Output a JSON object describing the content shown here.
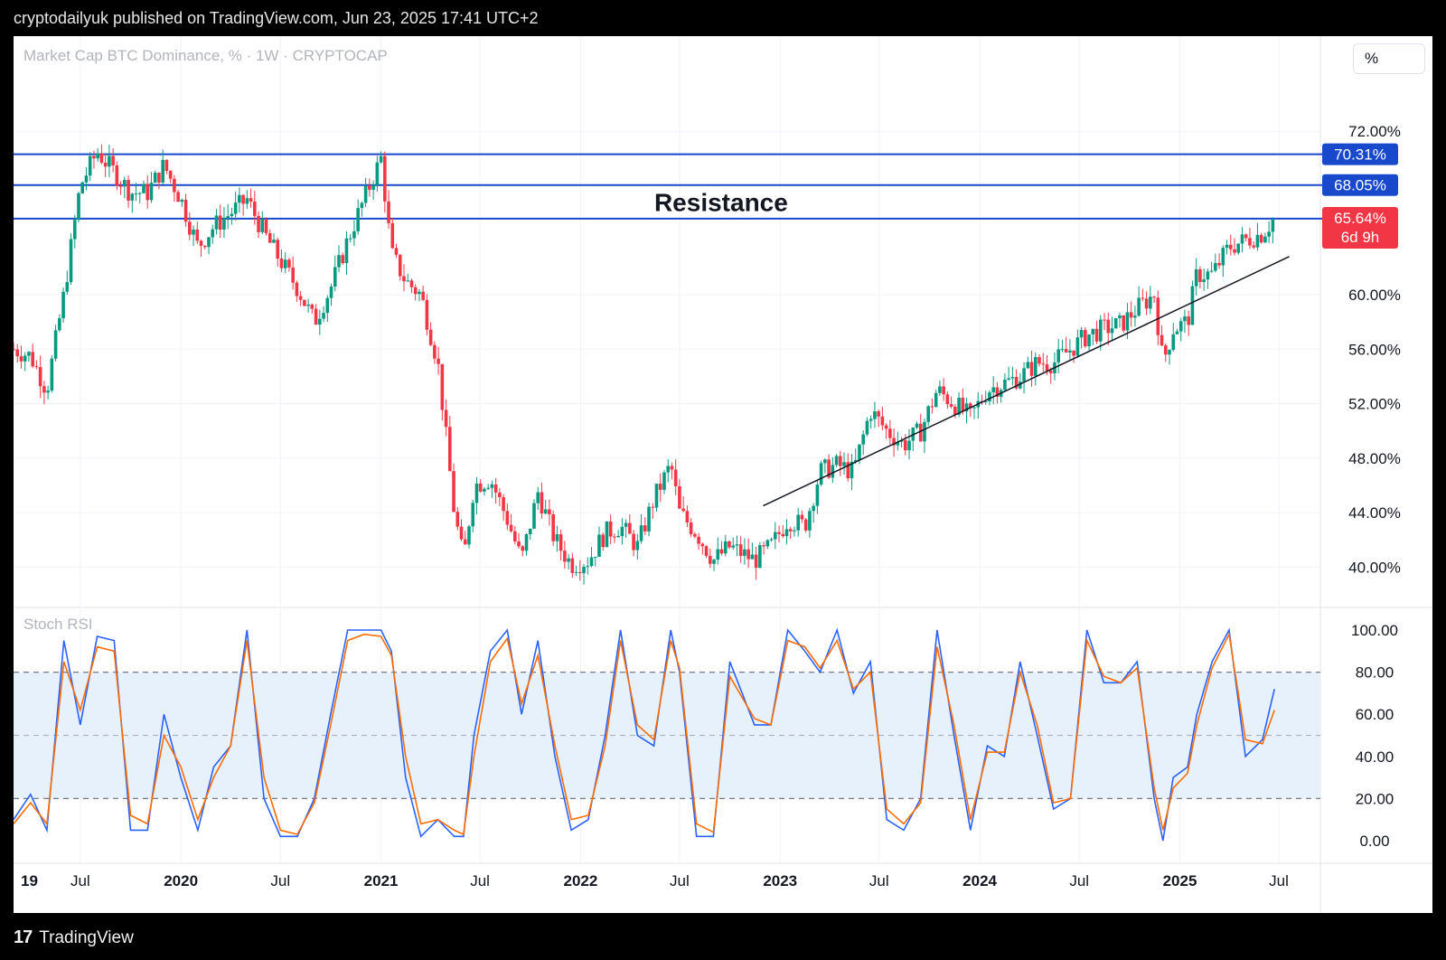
{
  "header": {
    "text": "cryptodailyuk published on TradingView.com, Jun 23, 2025 17:41 UTC+2"
  },
  "footer": {
    "brand": "TradingView",
    "logo_glyph": "17"
  },
  "unit_button": {
    "label": "%"
  },
  "colors": {
    "up": "#089981",
    "down": "#f23645",
    "line": "#1848cc",
    "rsi_k": "#2962ff",
    "rsi_d": "#ff6d00",
    "band": "#e6f1fb"
  },
  "chart_data": [
    {
      "type": "candlestick",
      "title": "Market Cap BTC Dominance, % · 1W · CRYPTOCAP",
      "y_unit": "%",
      "x_range": [
        "2019-03-01",
        "2025-09-15"
      ],
      "ylim": [
        37.5,
        75.0
      ],
      "yticks": [
        "72.00%",
        "60.00%",
        "56.00%",
        "52.00%",
        "48.00%",
        "44.00%",
        "40.00%"
      ],
      "xticks": [
        {
          "label": "19",
          "date": "2019-01-01"
        },
        {
          "label": "Jul",
          "date": "2019-07-01"
        },
        {
          "label": "2020",
          "date": "2020-01-01"
        },
        {
          "label": "Jul",
          "date": "2020-07-01"
        },
        {
          "label": "2021",
          "date": "2021-01-01"
        },
        {
          "label": "Jul",
          "date": "2021-07-01"
        },
        {
          "label": "2022",
          "date": "2022-01-01"
        },
        {
          "label": "Jul",
          "date": "2022-07-01"
        },
        {
          "label": "2023",
          "date": "2023-01-01"
        },
        {
          "label": "Jul",
          "date": "2023-07-01"
        },
        {
          "label": "2024",
          "date": "2024-01-01"
        },
        {
          "label": "Jul",
          "date": "2024-07-01"
        },
        {
          "label": "2025",
          "date": "2025-01-01"
        },
        {
          "label": "Jul",
          "date": "2025-07-01"
        }
      ],
      "horizontal_levels": [
        {
          "label": "70.31%",
          "value": 70.31
        },
        {
          "label": "68.05%",
          "value": 68.05
        },
        {
          "label": "65.58%",
          "value": 65.58
        }
      ],
      "last_price": {
        "label": "65.64%",
        "value": 65.64,
        "countdown": "6d 9h"
      },
      "annotation": {
        "text": "Resistance",
        "date": "2022-09-15",
        "value": 66.8
      },
      "trendline": {
        "start": {
          "date": "2022-12-01",
          "value": 44.5
        },
        "end": {
          "date": "2025-07-20",
          "value": 62.8
        }
      },
      "close_path": [
        [
          "2019-03-01",
          56.0
        ],
        [
          "2019-04-01",
          55.5
        ],
        [
          "2019-05-01",
          53.0
        ],
        [
          "2019-06-01",
          60.0
        ],
        [
          "2019-07-01",
          68.0
        ],
        [
          "2019-08-01",
          70.5
        ],
        [
          "2019-09-01",
          69.0
        ],
        [
          "2019-10-01",
          67.5
        ],
        [
          "2019-11-01",
          67.5
        ],
        [
          "2019-12-01",
          69.5
        ],
        [
          "2020-01-01",
          67.0
        ],
        [
          "2020-02-01",
          63.5
        ],
        [
          "2020-03-01",
          65.0
        ],
        [
          "2020-04-01",
          66.0
        ],
        [
          "2020-05-01",
          67.0
        ],
        [
          "2020-06-01",
          64.5
        ],
        [
          "2020-07-01",
          62.5
        ],
        [
          "2020-08-01",
          60.5
        ],
        [
          "2020-09-01",
          58.0
        ],
        [
          "2020-10-01",
          60.5
        ],
        [
          "2020-11-01",
          64.0
        ],
        [
          "2020-12-01",
          67.0
        ],
        [
          "2021-01-01",
          70.0
        ],
        [
          "2021-01-20",
          63.0
        ],
        [
          "2021-02-15",
          61.0
        ],
        [
          "2021-03-15",
          60.0
        ],
        [
          "2021-04-15",
          55.0
        ],
        [
          "2021-05-15",
          44.0
        ],
        [
          "2021-06-01",
          40.5
        ],
        [
          "2021-06-20",
          46.0
        ],
        [
          "2021-07-20",
          46.5
        ],
        [
          "2021-08-20",
          43.5
        ],
        [
          "2021-09-15",
          40.5
        ],
        [
          "2021-10-15",
          45.5
        ],
        [
          "2021-11-15",
          42.0
        ],
        [
          "2021-12-15",
          40.2
        ],
        [
          "2022-01-15",
          40.5
        ],
        [
          "2022-02-15",
          42.5
        ],
        [
          "2022-03-15",
          43.0
        ],
        [
          "2022-04-15",
          41.5
        ],
        [
          "2022-05-15",
          45.0
        ],
        [
          "2022-06-15",
          47.5
        ],
        [
          "2022-07-01",
          44.0
        ],
        [
          "2022-08-01",
          42.5
        ],
        [
          "2022-09-01",
          40.5
        ],
        [
          "2022-10-01",
          41.5
        ],
        [
          "2022-11-15",
          40.5
        ],
        [
          "2022-12-15",
          41.5
        ],
        [
          "2023-01-15",
          43.5
        ],
        [
          "2023-02-15",
          43.0
        ],
        [
          "2023-03-15",
          47.0
        ],
        [
          "2023-04-15",
          47.5
        ],
        [
          "2023-05-15",
          47.0
        ],
        [
          "2023-06-15",
          51.5
        ],
        [
          "2023-07-15",
          50.0
        ],
        [
          "2023-08-15",
          49.0
        ],
        [
          "2023-09-15",
          50.0
        ],
        [
          "2023-10-15",
          53.0
        ],
        [
          "2023-11-15",
          52.0
        ],
        [
          "2023-12-15",
          51.0
        ],
        [
          "2024-01-15",
          53.0
        ],
        [
          "2024-02-15",
          53.5
        ],
        [
          "2024-03-15",
          54.0
        ],
        [
          "2024-04-15",
          55.0
        ],
        [
          "2024-05-15",
          55.0
        ],
        [
          "2024-06-15",
          56.0
        ],
        [
          "2024-07-15",
          57.0
        ],
        [
          "2024-08-15",
          57.5
        ],
        [
          "2024-09-15",
          57.8
        ],
        [
          "2024-10-15",
          59.0
        ],
        [
          "2024-11-15",
          60.0
        ],
        [
          "2024-12-01",
          55.0
        ],
        [
          "2024-12-20",
          57.5
        ],
        [
          "2025-01-15",
          58.0
        ],
        [
          "2025-02-01",
          61.5
        ],
        [
          "2025-03-01",
          61.5
        ],
        [
          "2025-04-01",
          63.5
        ],
        [
          "2025-05-01",
          64.0
        ],
        [
          "2025-06-01",
          64.5
        ],
        [
          "2025-06-23",
          65.64
        ]
      ]
    },
    {
      "type": "line",
      "title": "Stoch RSI",
      "ylim": [
        0,
        100
      ],
      "yticks": [
        "100.00",
        "80.00",
        "60.00",
        "40.00",
        "20.00",
        "0.00"
      ],
      "bands": [
        20,
        50,
        80
      ],
      "series": [
        {
          "key": "k",
          "points": [
            [
              "2019-03-01",
              10
            ],
            [
              "2019-04-01",
              22
            ],
            [
              "2019-05-01",
              5
            ],
            [
              "2019-06-01",
              95
            ],
            [
              "2019-07-01",
              55
            ],
            [
              "2019-08-01",
              97
            ],
            [
              "2019-09-01",
              95
            ],
            [
              "2019-10-01",
              5
            ],
            [
              "2019-11-01",
              5
            ],
            [
              "2019-12-01",
              60
            ],
            [
              "2020-01-01",
              30
            ],
            [
              "2020-02-01",
              5
            ],
            [
              "2020-03-01",
              35
            ],
            [
              "2020-04-01",
              45
            ],
            [
              "2020-05-01",
              100
            ],
            [
              "2020-06-01",
              20
            ],
            [
              "2020-07-01",
              2
            ],
            [
              "2020-08-01",
              2
            ],
            [
              "2020-09-01",
              20
            ],
            [
              "2020-10-01",
              60
            ],
            [
              "2020-11-01",
              100
            ],
            [
              "2020-12-01",
              100
            ],
            [
              "2021-01-01",
              100
            ],
            [
              "2021-01-20",
              90
            ],
            [
              "2021-02-15",
              30
            ],
            [
              "2021-03-15",
              2
            ],
            [
              "2021-04-15",
              10
            ],
            [
              "2021-05-15",
              2
            ],
            [
              "2021-06-01",
              2
            ],
            [
              "2021-06-20",
              50
            ],
            [
              "2021-07-20",
              90
            ],
            [
              "2021-08-20",
              100
            ],
            [
              "2021-09-15",
              60
            ],
            [
              "2021-10-15",
              95
            ],
            [
              "2021-11-15",
              40
            ],
            [
              "2021-12-15",
              5
            ],
            [
              "2022-01-15",
              10
            ],
            [
              "2022-02-15",
              50
            ],
            [
              "2022-03-15",
              100
            ],
            [
              "2022-04-15",
              50
            ],
            [
              "2022-05-15",
              45
            ],
            [
              "2022-06-15",
              100
            ],
            [
              "2022-07-01",
              80
            ],
            [
              "2022-08-01",
              2
            ],
            [
              "2022-09-01",
              2
            ],
            [
              "2022-10-01",
              85
            ],
            [
              "2022-11-15",
              55
            ],
            [
              "2022-12-15",
              55
            ],
            [
              "2023-01-15",
              100
            ],
            [
              "2023-02-15",
              90
            ],
            [
              "2023-03-15",
              80
            ],
            [
              "2023-04-15",
              100
            ],
            [
              "2023-05-15",
              70
            ],
            [
              "2023-06-15",
              85
            ],
            [
              "2023-07-15",
              10
            ],
            [
              "2023-08-15",
              5
            ],
            [
              "2023-09-15",
              20
            ],
            [
              "2023-10-15",
              100
            ],
            [
              "2023-11-15",
              50
            ],
            [
              "2023-12-15",
              5
            ],
            [
              "2024-01-15",
              45
            ],
            [
              "2024-02-15",
              40
            ],
            [
              "2024-03-15",
              85
            ],
            [
              "2024-04-15",
              50
            ],
            [
              "2024-05-15",
              15
            ],
            [
              "2024-06-15",
              20
            ],
            [
              "2024-07-15",
              100
            ],
            [
              "2024-08-15",
              75
            ],
            [
              "2024-09-15",
              75
            ],
            [
              "2024-10-15",
              85
            ],
            [
              "2024-11-15",
              20
            ],
            [
              "2024-12-01",
              0
            ],
            [
              "2024-12-20",
              30
            ],
            [
              "2025-01-15",
              35
            ],
            [
              "2025-02-01",
              60
            ],
            [
              "2025-03-01",
              85
            ],
            [
              "2025-04-01",
              100
            ],
            [
              "2025-05-01",
              40
            ],
            [
              "2025-06-01",
              48
            ],
            [
              "2025-06-23",
              72
            ]
          ]
        },
        {
          "key": "d",
          "points": [
            [
              "2019-03-01",
              8
            ],
            [
              "2019-04-01",
              18
            ],
            [
              "2019-05-01",
              8
            ],
            [
              "2019-06-01",
              85
            ],
            [
              "2019-07-01",
              62
            ],
            [
              "2019-08-01",
              92
            ],
            [
              "2019-09-01",
              90
            ],
            [
              "2019-10-01",
              12
            ],
            [
              "2019-11-01",
              8
            ],
            [
              "2019-12-01",
              50
            ],
            [
              "2020-01-01",
              35
            ],
            [
              "2020-02-01",
              10
            ],
            [
              "2020-03-01",
              30
            ],
            [
              "2020-04-01",
              45
            ],
            [
              "2020-05-01",
              95
            ],
            [
              "2020-06-01",
              30
            ],
            [
              "2020-07-01",
              5
            ],
            [
              "2020-08-01",
              3
            ],
            [
              "2020-09-01",
              18
            ],
            [
              "2020-10-01",
              55
            ],
            [
              "2020-11-01",
              95
            ],
            [
              "2020-12-01",
              98
            ],
            [
              "2021-01-01",
              97
            ],
            [
              "2021-01-20",
              88
            ],
            [
              "2021-02-15",
              40
            ],
            [
              "2021-03-15",
              8
            ],
            [
              "2021-04-15",
              10
            ],
            [
              "2021-05-15",
              5
            ],
            [
              "2021-06-01",
              3
            ],
            [
              "2021-06-20",
              40
            ],
            [
              "2021-07-20",
              85
            ],
            [
              "2021-08-20",
              96
            ],
            [
              "2021-09-15",
              65
            ],
            [
              "2021-10-15",
              88
            ],
            [
              "2021-11-15",
              45
            ],
            [
              "2021-12-15",
              10
            ],
            [
              "2022-01-15",
              12
            ],
            [
              "2022-02-15",
              45
            ],
            [
              "2022-03-15",
              95
            ],
            [
              "2022-04-15",
              55
            ],
            [
              "2022-05-15",
              48
            ],
            [
              "2022-06-15",
              95
            ],
            [
              "2022-07-01",
              82
            ],
            [
              "2022-08-01",
              8
            ],
            [
              "2022-09-01",
              4
            ],
            [
              "2022-10-01",
              78
            ],
            [
              "2022-11-15",
              58
            ],
            [
              "2022-12-15",
              55
            ],
            [
              "2023-01-15",
              95
            ],
            [
              "2023-02-15",
              92
            ],
            [
              "2023-03-15",
              82
            ],
            [
              "2023-04-15",
              95
            ],
            [
              "2023-05-15",
              72
            ],
            [
              "2023-06-15",
              80
            ],
            [
              "2023-07-15",
              15
            ],
            [
              "2023-08-15",
              8
            ],
            [
              "2023-09-15",
              18
            ],
            [
              "2023-10-15",
              92
            ],
            [
              "2023-11-15",
              55
            ],
            [
              "2023-12-15",
              10
            ],
            [
              "2024-01-15",
              42
            ],
            [
              "2024-02-15",
              42
            ],
            [
              "2024-03-15",
              80
            ],
            [
              "2024-04-15",
              55
            ],
            [
              "2024-05-15",
              18
            ],
            [
              "2024-06-15",
              20
            ],
            [
              "2024-07-15",
              95
            ],
            [
              "2024-08-15",
              78
            ],
            [
              "2024-09-15",
              75
            ],
            [
              "2024-10-15",
              82
            ],
            [
              "2024-11-15",
              25
            ],
            [
              "2024-12-01",
              5
            ],
            [
              "2024-12-20",
              25
            ],
            [
              "2025-01-15",
              32
            ],
            [
              "2025-02-01",
              55
            ],
            [
              "2025-03-01",
              82
            ],
            [
              "2025-04-01",
              98
            ],
            [
              "2025-05-01",
              48
            ],
            [
              "2025-06-01",
              46
            ],
            [
              "2025-06-23",
              62
            ]
          ]
        }
      ]
    }
  ]
}
